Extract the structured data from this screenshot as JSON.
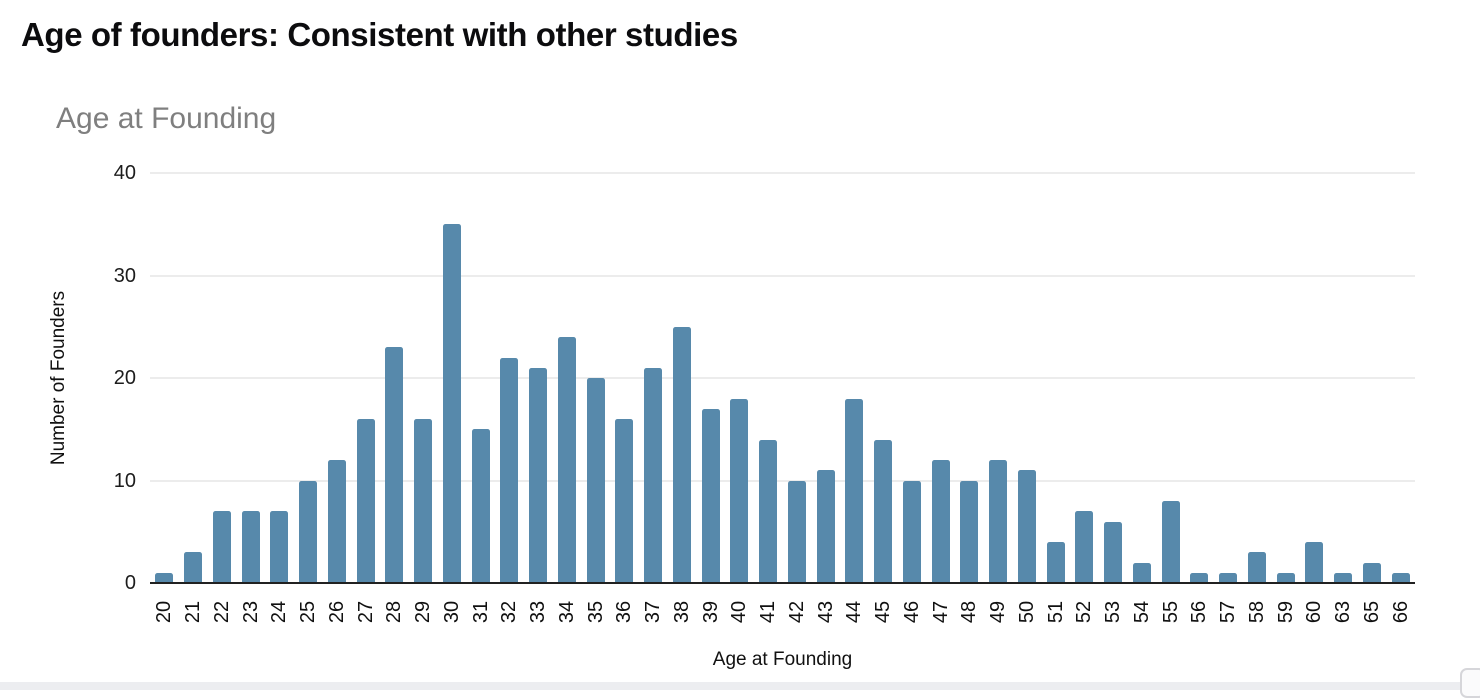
{
  "slide": {
    "title": "Age of founders: Consistent with other studies"
  },
  "chart_data": {
    "type": "bar",
    "title": "Age at Founding",
    "xlabel": "Age at Founding",
    "ylabel": "Number of Founders",
    "categories": [
      "20",
      "21",
      "22",
      "23",
      "24",
      "25",
      "26",
      "27",
      "28",
      "29",
      "30",
      "31",
      "32",
      "33",
      "34",
      "35",
      "36",
      "37",
      "38",
      "39",
      "40",
      "41",
      "42",
      "43",
      "44",
      "45",
      "46",
      "47",
      "48",
      "49",
      "50",
      "51",
      "52",
      "53",
      "54",
      "55",
      "56",
      "57",
      "58",
      "59",
      "60",
      "63",
      "65",
      "66"
    ],
    "values": [
      1,
      3,
      7,
      7,
      7,
      10,
      12,
      16,
      23,
      16,
      35,
      15,
      22,
      21,
      24,
      20,
      16,
      21,
      25,
      17,
      18,
      14,
      10,
      11,
      18,
      14,
      10,
      12,
      10,
      12,
      11,
      4,
      7,
      6,
      2,
      8,
      1,
      1,
      3,
      1,
      4,
      1,
      2,
      1
    ],
    "ylim": [
      0,
      40
    ],
    "yticks": [
      0,
      10,
      20,
      30,
      40
    ],
    "grid": true,
    "legend_position": "none",
    "colors": {
      "bar": "#5789ab",
      "gridline": "#d9d9d9",
      "axis": "#212121",
      "chart_title": "#7f7f7f"
    }
  }
}
